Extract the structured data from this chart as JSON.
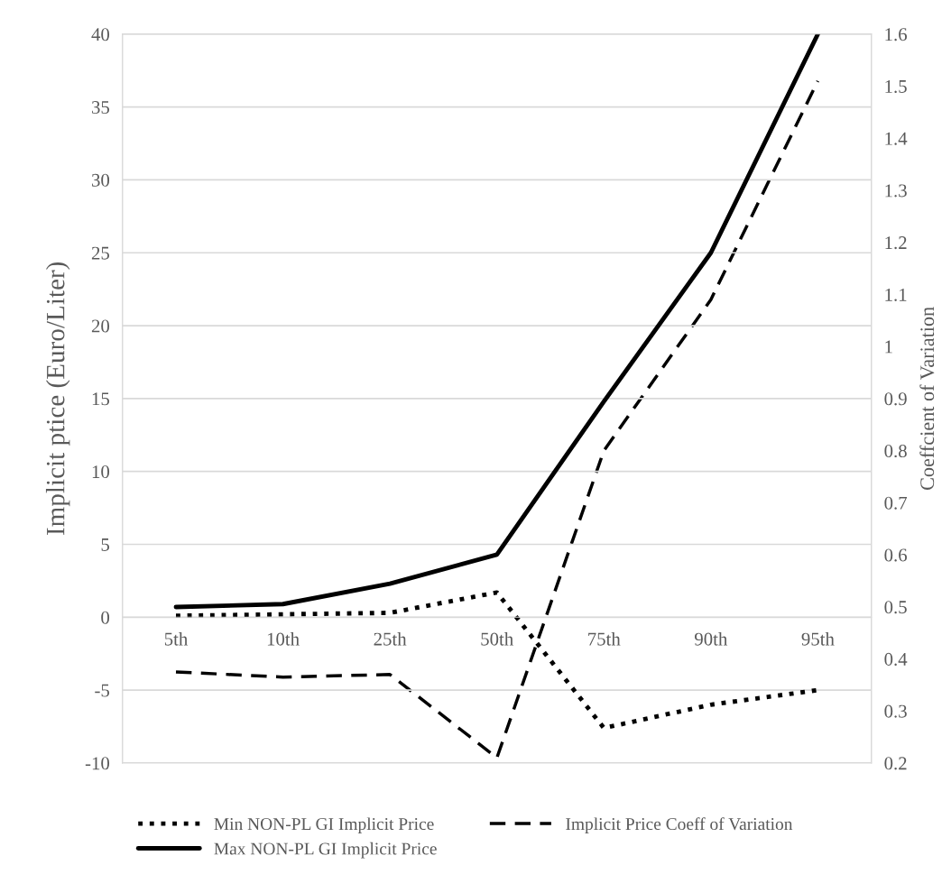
{
  "chart_data": {
    "type": "line",
    "categories": [
      "5th",
      "10th",
      "25th",
      "50th",
      "75th",
      "90th",
      "95th"
    ],
    "ylabel": "Implicit ptice (Euro/Liter)",
    "y2label": "Coeffcient of Variation",
    "series": [
      {
        "name": "Min NON-PL GI Implicit Price",
        "color": "#000000",
        "line_style": "dotted",
        "values": [
          0.1,
          0.2,
          0.3,
          1.7,
          -7.6,
          -6.0,
          -5.0
        ]
      },
      {
        "name": "Max NON-PL GI Implicit Price",
        "color": "#000000",
        "line_style": "solid",
        "values": [
          0.7,
          0.9,
          2.3,
          4.3,
          14.8,
          25.0,
          40.0
        ]
      },
      {
        "name": "Implicit Price Coeff of Variation",
        "color": "#000000",
        "line_style": "dashed",
        "axis": "y2",
        "values": [
          0.375,
          0.365,
          0.37,
          0.21,
          0.8,
          1.09,
          1.51
        ]
      }
    ],
    "ylim": [
      -10,
      40
    ],
    "yticks": [
      -10,
      -5,
      0,
      5,
      10,
      15,
      20,
      25,
      30,
      35,
      40
    ],
    "y2lim": [
      0.2,
      1.6
    ],
    "y2ticks": [
      0.2,
      0.3,
      0.4,
      0.5,
      0.6,
      0.7,
      0.8,
      0.9,
      1,
      1.1,
      1.2,
      1.3,
      1.4,
      1.5,
      1.6
    ],
    "grid": "y",
    "legend": "bottom",
    "marker": "none"
  }
}
